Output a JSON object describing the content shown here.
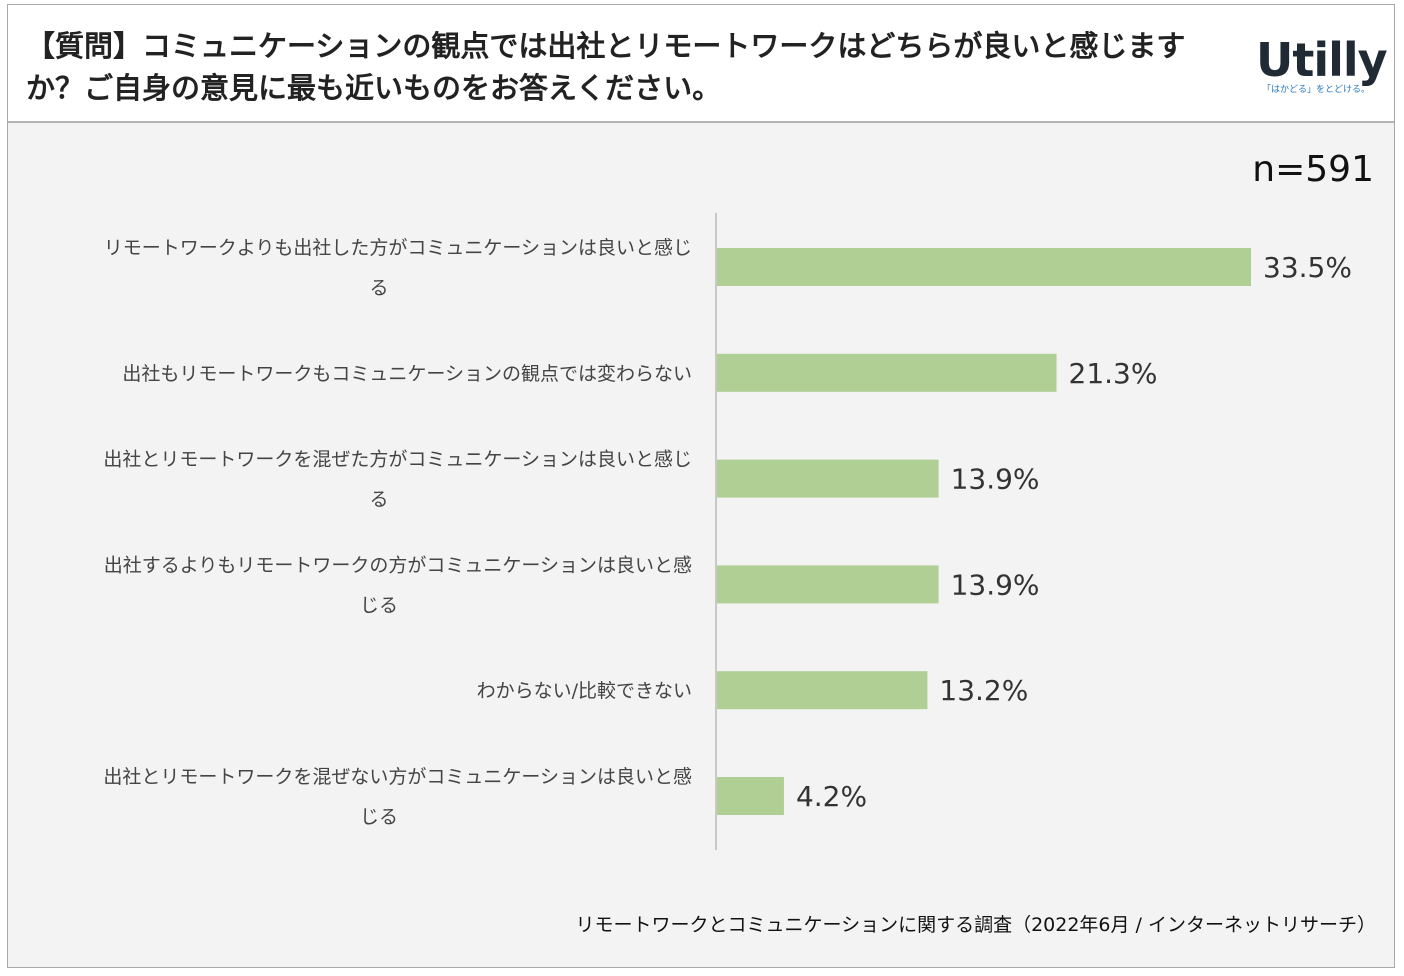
{
  "title": "【質問】コミュニケーションの観点では出社とリモートワークはどちらが良いと感じますか？ご自身の意見に最も近いものをお答えください。",
  "brand": {
    "name": "Utilly",
    "tagline": "「はかどる」をとどける。"
  },
  "sample_size": "n=591",
  "footer": "リモートワークとコミュニケーションに関する調査（2022年6月 / インターネットリサーチ）",
  "colors": {
    "bar": "#b0cf95",
    "axis": "#c8c8c8",
    "text": "#444444",
    "value_text": "#333333"
  },
  "chart_data": {
    "type": "bar",
    "orientation": "horizontal",
    "categories": [
      [
        "リモートワークよりも出社した方がコミュニケーションは良いと感じ",
        "る"
      ],
      [
        "出社もリモートワークもコミュニケーションの観点では変わらない"
      ],
      [
        "出社とリモートワークを混ぜた方がコミュニケーションは良いと感じ",
        "る"
      ],
      [
        "出社するよりもリモートワークの方がコミュニケーションは良いと感",
        "じる"
      ],
      [
        "わからない/比較できない"
      ],
      [
        "出社とリモートワークを混ぜない方がコミュニケーションは良いと感",
        "じる"
      ]
    ],
    "values": [
      33.5,
      21.3,
      13.9,
      13.9,
      13.2,
      4.2
    ],
    "value_labels": [
      "33.5%",
      "21.3%",
      "13.9%",
      "13.9%",
      "13.2%",
      "4.2%"
    ],
    "unit": "%",
    "xlim": [
      0,
      33.5
    ],
    "grid": false,
    "legend": "none"
  }
}
